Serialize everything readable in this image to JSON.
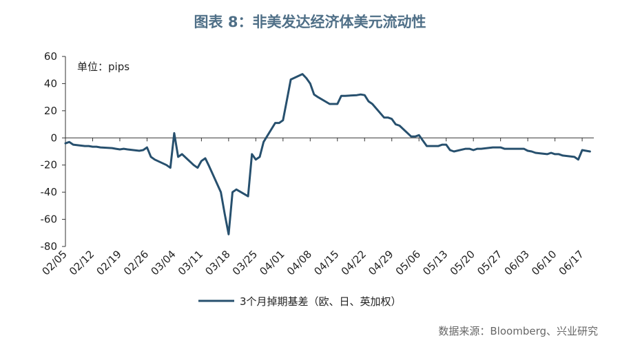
{
  "title": "图表 8：非美发达经济体美元流动性",
  "source": "数据来源：Bloomberg、兴业研究",
  "chart_data": {
    "type": "line",
    "title": "图表 8：非美发达经济体美元流动性",
    "unit_label": "单位：pips",
    "ylim": [
      -80,
      60
    ],
    "yticks": [
      60,
      40,
      20,
      0,
      -20,
      -40,
      -60,
      -80
    ],
    "xlim": [
      "02/05",
      "06/20"
    ],
    "xticks": [
      "02/05",
      "02/12",
      "02/19",
      "02/26",
      "03/04",
      "03/11",
      "03/18",
      "03/25",
      "04/01",
      "04/08",
      "04/15",
      "04/22",
      "04/29",
      "05/06",
      "05/13",
      "05/20",
      "05/27",
      "06/03",
      "06/10",
      "06/17"
    ],
    "legend": "bottom-center",
    "series": [
      {
        "name": "3个月掉期基差（欧、日、英加权）",
        "color": "#27506e",
        "x": [
          "02/05",
          "02/06",
          "02/07",
          "02/10",
          "02/11",
          "02/12",
          "02/13",
          "02/14",
          "02/17",
          "02/18",
          "02/19",
          "02/20",
          "02/21",
          "02/24",
          "02/25",
          "02/26",
          "02/27",
          "02/28",
          "03/02",
          "03/03",
          "03/04",
          "03/05",
          "03/06",
          "03/09",
          "03/10",
          "03/11",
          "03/12",
          "03/13",
          "03/16",
          "03/17",
          "03/18",
          "03/19",
          "03/20",
          "03/23",
          "03/24",
          "03/25",
          "03/26",
          "03/27",
          "03/30",
          "03/31",
          "04/01",
          "04/02",
          "04/03",
          "04/06",
          "04/07",
          "04/08",
          "04/09",
          "04/10",
          "04/13",
          "04/14",
          "04/15",
          "04/16",
          "04/17",
          "04/20",
          "04/21",
          "04/22",
          "04/23",
          "04/24",
          "04/27",
          "04/28",
          "04/29",
          "04/30",
          "05/01",
          "05/04",
          "05/05",
          "05/06",
          "05/07",
          "05/08",
          "05/11",
          "05/12",
          "05/13",
          "05/14",
          "05/15",
          "05/18",
          "05/19",
          "05/20",
          "05/21",
          "05/22",
          "05/25",
          "05/26",
          "05/27",
          "05/28",
          "05/29",
          "06/01",
          "06/02",
          "06/03",
          "06/04",
          "06/05",
          "06/08",
          "06/09",
          "06/10",
          "06/11",
          "06/12",
          "06/15",
          "06/16",
          "06/17",
          "06/18",
          "06/19"
        ],
        "y": [
          -4,
          -3,
          -5,
          -6,
          -6,
          -6.5,
          -6.5,
          -7,
          -7.5,
          -8,
          -8.5,
          -8,
          -8.5,
          -9.5,
          -9,
          -7,
          -14,
          -16,
          -20,
          -22,
          3.5,
          -14,
          -12,
          -20,
          -22,
          -17,
          -15,
          -21,
          -40,
          -56,
          -71,
          -40,
          -38,
          -43,
          -12,
          -16,
          -14,
          -3,
          11,
          11,
          13,
          28,
          43,
          47,
          44,
          40,
          32,
          30,
          25,
          25,
          25,
          31,
          31,
          31.5,
          32,
          31.5,
          27,
          25,
          15,
          15,
          14,
          10,
          9,
          1,
          1,
          2,
          -2,
          -6,
          -6,
          -5,
          -5,
          -9,
          -10,
          -8,
          -8,
          -9,
          -8,
          -8,
          -7,
          -7,
          -7,
          -8,
          -8,
          -8,
          -8,
          -9.5,
          -10,
          -11,
          -12,
          -11,
          -12,
          -12,
          -13,
          -14,
          -16,
          -9,
          -9.5,
          -10
        ]
      }
    ]
  }
}
